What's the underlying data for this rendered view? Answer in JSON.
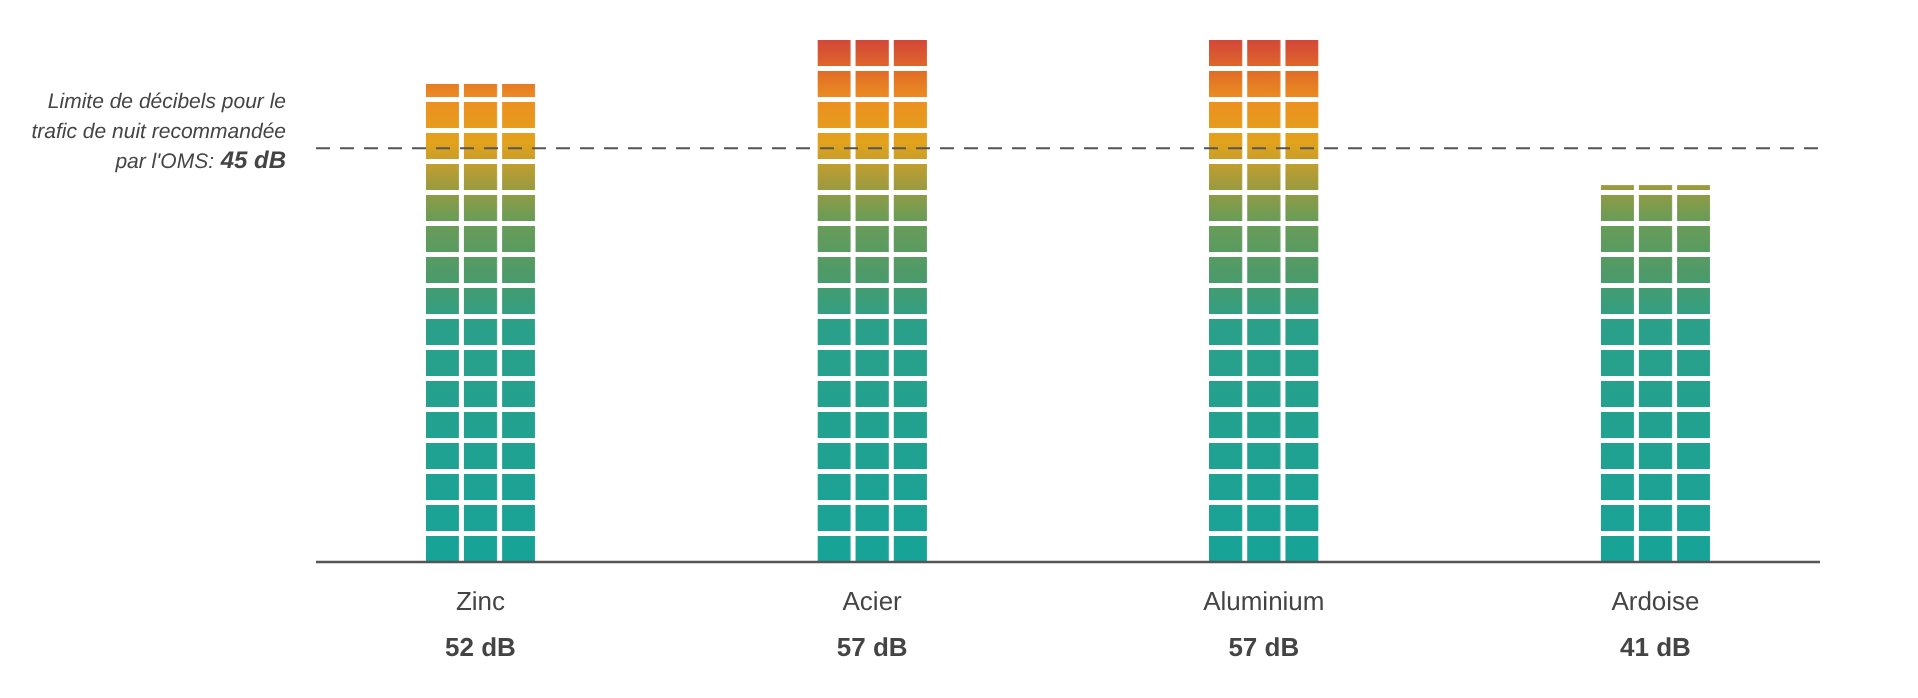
{
  "chart_data": {
    "type": "bar",
    "categories": [
      "Zinc",
      "Acier",
      "Aluminium",
      "Ardoise"
    ],
    "values": [
      52,
      57,
      57,
      41
    ],
    "value_labels": [
      "52 dB",
      "57 dB",
      "57 dB",
      "41 dB"
    ],
    "ref_lines": [
      {
        "axis": "y",
        "value": 45,
        "label": "Limite de décibels pour le trafic de nuit recommandée par l'OMS: 45 dB",
        "line_style": "dashed",
        "color": "#555555"
      }
    ],
    "grid": false
  }
}
